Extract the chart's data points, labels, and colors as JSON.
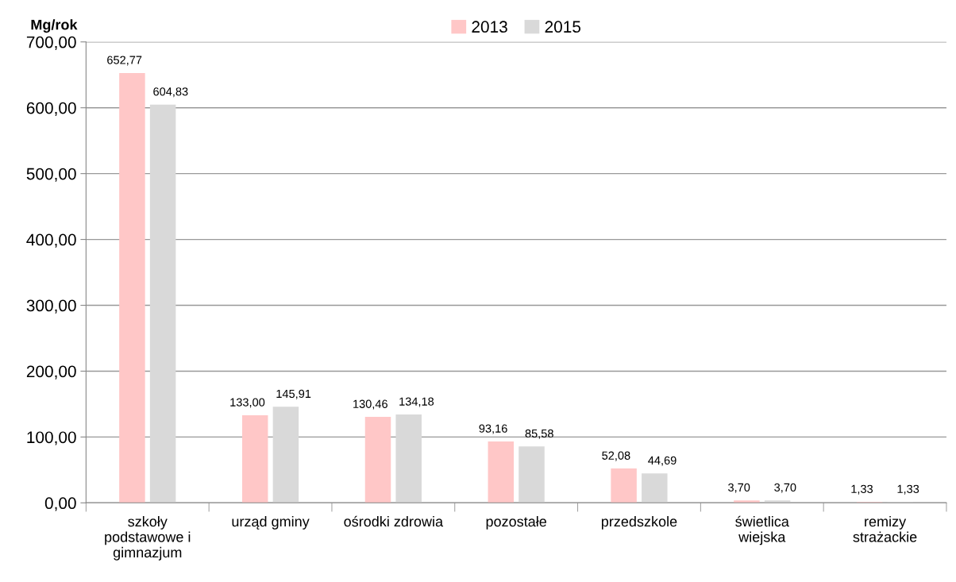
{
  "chart_data": {
    "type": "bar",
    "ylabel": "Mg/rok",
    "categories": [
      "szkoły\npodstawowe i\ngimnazjum",
      "urząd gminy",
      "ośrodki zdrowia",
      "pozostałe",
      "przedszkole",
      "świetlica\nwiejska",
      "remizy\nstrażackie"
    ],
    "series": [
      {
        "name": "2013",
        "color": "#ffc7c7",
        "values": [
          652.77,
          133.0,
          130.46,
          93.16,
          52.08,
          3.7,
          1.33
        ],
        "value_labels": [
          "652,77",
          "133,00",
          "130,46",
          "93,16",
          "52,08",
          "3,70",
          "1,33"
        ]
      },
      {
        "name": "2015",
        "color": "#d9d9d9",
        "values": [
          604.83,
          145.91,
          134.18,
          85.58,
          44.69,
          3.7,
          1.33
        ],
        "value_labels": [
          "604,83",
          "145,91",
          "134,18",
          "85,58",
          "44,69",
          "3,70",
          "1,33"
        ]
      }
    ],
    "ylim": [
      0,
      700
    ],
    "yticks": [
      {
        "value": 0,
        "label": "0,00"
      },
      {
        "value": 100,
        "label": "100,00"
      },
      {
        "value": 200,
        "label": "200,00"
      },
      {
        "value": 300,
        "label": "300,00"
      },
      {
        "value": 400,
        "label": "400,00"
      },
      {
        "value": 500,
        "label": "500,00"
      },
      {
        "value": 600,
        "label": "600,00"
      },
      {
        "value": 700,
        "label": "700,00"
      }
    ],
    "grid": "y",
    "legend": "top"
  }
}
